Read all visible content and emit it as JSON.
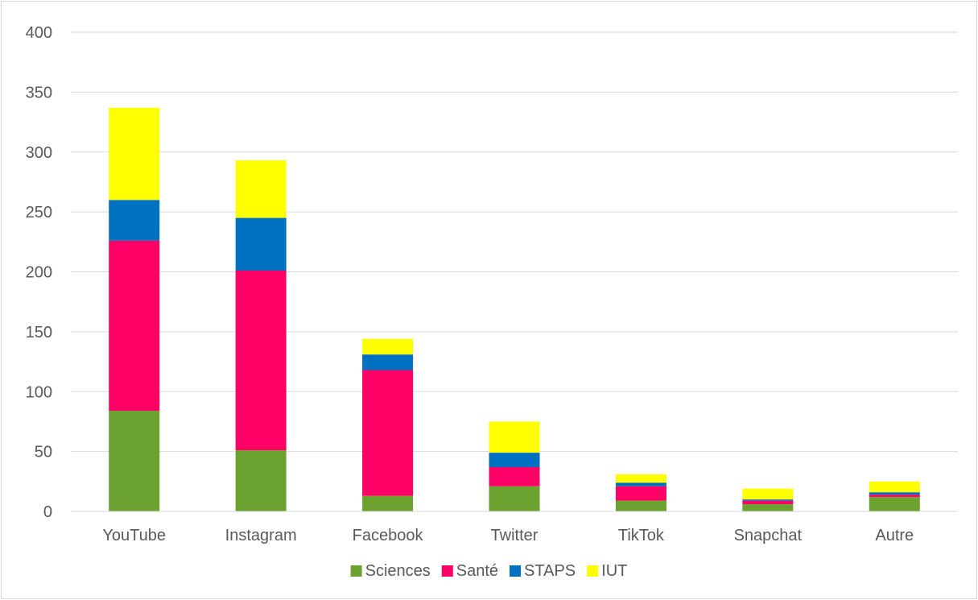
{
  "chart_data": {
    "type": "bar",
    "stacked": true,
    "title": "",
    "xlabel": "",
    "ylabel": "",
    "categories": [
      "YouTube",
      "Instagram",
      "Facebook",
      "Twitter",
      "TikTok",
      "Snapchat",
      "Autre"
    ],
    "series": [
      {
        "name": "Sciences",
        "color": "#6ba12f",
        "values": [
          84,
          51,
          13,
          21,
          9,
          6,
          12
        ]
      },
      {
        "name": "Santé",
        "color": "#ff0066",
        "values": [
          142,
          150,
          105,
          16,
          12,
          3,
          2
        ]
      },
      {
        "name": "STAPS",
        "color": "#0070c0",
        "values": [
          34,
          44,
          13,
          12,
          3,
          1,
          2
        ]
      },
      {
        "name": "IUT",
        "color": "#ffff00",
        "values": [
          77,
          48,
          13,
          26,
          7,
          9,
          9
        ]
      }
    ],
    "ylim": [
      0,
      400
    ],
    "yticks": [
      "0",
      "50",
      "100",
      "150",
      "200",
      "250",
      "300",
      "350",
      "400"
    ],
    "grid": true,
    "legend_position": "bottom"
  }
}
